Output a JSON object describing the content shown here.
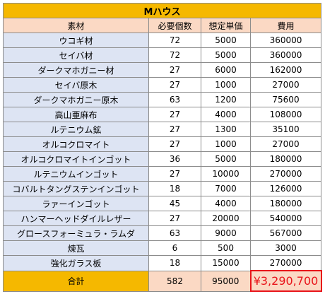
{
  "title": "Mハウス",
  "headers": [
    "素材",
    "必要個数",
    "想定単価",
    "費用"
  ],
  "rows": [
    {
      "material": "ウコギ材",
      "qty": "72",
      "unit_price": "5000",
      "cost": "360000"
    },
    {
      "material": "セイバ材",
      "qty": "72",
      "unit_price": "5000",
      "cost": "360000"
    },
    {
      "material": "ダークマホガニー材",
      "qty": "27",
      "unit_price": "6000",
      "cost": "162000"
    },
    {
      "material": "セイバ原木",
      "qty": "27",
      "unit_price": "1000",
      "cost": "27000"
    },
    {
      "material": "ダークマホガニー原木",
      "qty": "63",
      "unit_price": "1200",
      "cost": "75600"
    },
    {
      "material": "高山亜麻布",
      "qty": "27",
      "unit_price": "4000",
      "cost": "108000"
    },
    {
      "material": "ルテニウム鉱",
      "qty": "27",
      "unit_price": "1300",
      "cost": "35100"
    },
    {
      "material": "オルコクロマイト",
      "qty": "27",
      "unit_price": "1000",
      "cost": "27000"
    },
    {
      "material": "オルコクロマイトインゴット",
      "qty": "36",
      "unit_price": "5000",
      "cost": "180000"
    },
    {
      "material": "ルテニウムインゴット",
      "qty": "27",
      "unit_price": "10000",
      "cost": "270000"
    },
    {
      "material": "コバルトタングステンインゴット",
      "qty": "18",
      "unit_price": "7000",
      "cost": "126000"
    },
    {
      "material": "ラァーインゴット",
      "qty": "45",
      "unit_price": "4000",
      "cost": "180000"
    },
    {
      "material": "ハンマーヘッドダイルレザー",
      "qty": "27",
      "unit_price": "20000",
      "cost": "540000"
    },
    {
      "material": "グロースフォーミュラ・ラムダ",
      "qty": "63",
      "unit_price": "9000",
      "cost": "567000"
    },
    {
      "material": "煉瓦",
      "qty": "6",
      "unit_price": "500",
      "cost": "3000"
    },
    {
      "material": "強化ガラス板",
      "qty": "18",
      "unit_price": "15000",
      "cost": "270000"
    }
  ],
  "total": {
    "label": "合計",
    "qty": "582",
    "unit_price": "95000",
    "cost": "¥3,290,700"
  },
  "colors": {
    "title_bg": "#f5b800",
    "header_bg": "#fbd9c4",
    "material_bg": "#dde4f3",
    "total_cost_text": "#e8141a"
  }
}
